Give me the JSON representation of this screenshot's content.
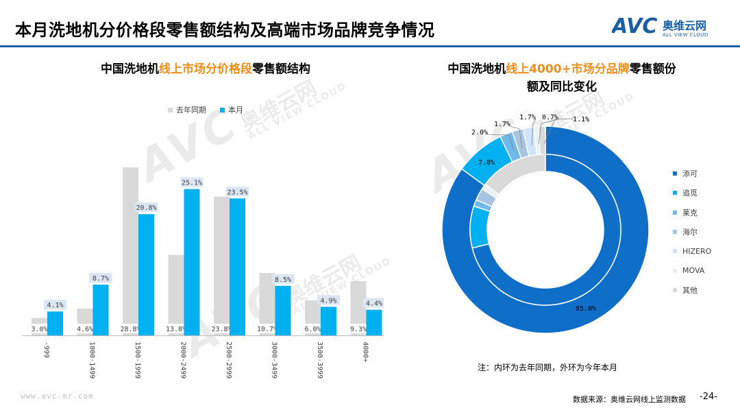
{
  "header": {
    "title": "本月洗地机分价格段零售额结构及高端市场品牌竞争情况",
    "logo_mark": "AVC",
    "logo_cn": "奥维云网",
    "logo_en": "ALL VIEW CLOUD"
  },
  "colors": {
    "brand_blue": "#1a5fa6",
    "highlight_orange": "#ee8e18",
    "last_year_gray": "#d9d9d9",
    "this_month_cyan": "#00b0f0"
  },
  "watermark": {
    "main": "AVC",
    "cn": "奥维云网",
    "en": "ALL VIEW CLOUD"
  },
  "chart_data": [
    {
      "type": "bar",
      "title_parts": [
        "中国洗地机",
        "线上市场分价格段",
        "零售额结构"
      ],
      "categories": [
        "-999",
        "1000-1499",
        "1500-1999",
        "2000-2499",
        "2500-2999",
        "3000-3499",
        "3500-3999",
        "4000+"
      ],
      "series": [
        {
          "name": "去年同期",
          "color": "#d9d9d9",
          "values": [
            3.0,
            4.6,
            28.8,
            13.8,
            23.8,
            10.7,
            6.0,
            9.3
          ]
        },
        {
          "name": "本月",
          "color": "#00b0f0",
          "values": [
            4.1,
            8.7,
            20.8,
            25.1,
            23.5,
            8.5,
            4.9,
            4.4
          ]
        }
      ],
      "unit": "%",
      "ylim": [
        0,
        30
      ],
      "legend_position": "top",
      "grid": false
    },
    {
      "type": "donut",
      "title_line1_parts": [
        "中国洗地机",
        "线上4000+市场分品牌",
        "零售额份"
      ],
      "title_line2": "额及同比变化",
      "categories": [
        "添可",
        "追觅",
        "莱克",
        "海尔",
        "HIZERO",
        "MOVA",
        "其他"
      ],
      "colors": [
        "#0e6ec8",
        "#00b0f0",
        "#6fb8ea",
        "#a7c5e0",
        "#cfe6fa",
        "#e8f0f8",
        "#d9d9d9"
      ],
      "outer_ring": {
        "name": "本月",
        "values": [
          85.0,
          7.8,
          2.0,
          1.7,
          1.7,
          0.7,
          1.1
        ],
        "labels": [
          "85.0%",
          "7.8%",
          "2.0%",
          "1.7%",
          "1.7%",
          "0.7%",
          "1.1%"
        ]
      },
      "inner_ring": {
        "name": "去年同期",
        "values": [
          71.1,
          9.0,
          1.4,
          2.6,
          0.0,
          1.2,
          14.7
        ],
        "labels": [
          "",
          "",
          "",
          "",
          "",
          "",
          ""
        ]
      },
      "legend_position": "right",
      "footnote": "注：内环为去年同期，外环为今年本月"
    }
  ],
  "footer": {
    "site": "www.avc-mr.com",
    "source": "数据来源：奥维云网线上监测数据",
    "page": "-24-"
  }
}
